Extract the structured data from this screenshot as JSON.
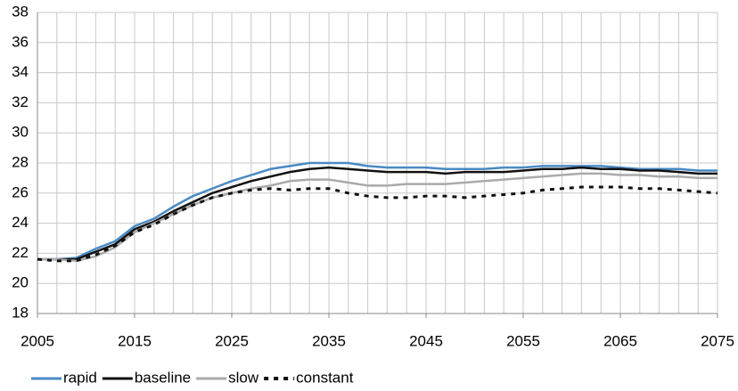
{
  "chart_data": {
    "type": "line",
    "x": [
      2005,
      2007,
      2009,
      2011,
      2013,
      2015,
      2017,
      2019,
      2021,
      2023,
      2025,
      2027,
      2029,
      2031,
      2033,
      2035,
      2037,
      2039,
      2041,
      2043,
      2045,
      2047,
      2049,
      2051,
      2053,
      2055,
      2057,
      2059,
      2061,
      2063,
      2065,
      2067,
      2069,
      2071,
      2073,
      2075
    ],
    "series": [
      {
        "name": "rapid",
        "color": "#4a8ac4",
        "style": "solid",
        "values": [
          21.6,
          21.6,
          21.7,
          22.3,
          22.8,
          23.8,
          24.3,
          25.1,
          25.8,
          26.3,
          26.8,
          27.2,
          27.6,
          27.8,
          28.0,
          28.0,
          28.0,
          27.8,
          27.7,
          27.7,
          27.7,
          27.6,
          27.6,
          27.6,
          27.7,
          27.7,
          27.8,
          27.8,
          27.8,
          27.8,
          27.7,
          27.6,
          27.6,
          27.6,
          27.5,
          27.5
        ]
      },
      {
        "name": "baseline",
        "color": "#111111",
        "style": "solid",
        "values": [
          21.6,
          21.6,
          21.6,
          22.1,
          22.6,
          23.6,
          24.1,
          24.8,
          25.4,
          26.0,
          26.4,
          26.8,
          27.1,
          27.4,
          27.6,
          27.7,
          27.6,
          27.5,
          27.4,
          27.4,
          27.4,
          27.3,
          27.4,
          27.4,
          27.4,
          27.5,
          27.6,
          27.6,
          27.7,
          27.6,
          27.6,
          27.5,
          27.5,
          27.4,
          27.3,
          27.3
        ]
      },
      {
        "name": "slow",
        "color": "#aaaaaa",
        "style": "solid",
        "values": [
          21.6,
          21.6,
          21.5,
          21.8,
          22.4,
          23.4,
          24.0,
          24.6,
          25.2,
          25.7,
          26.0,
          26.3,
          26.5,
          26.8,
          26.9,
          26.9,
          26.7,
          26.5,
          26.5,
          26.6,
          26.6,
          26.6,
          26.7,
          26.8,
          26.9,
          27.0,
          27.1,
          27.2,
          27.3,
          27.3,
          27.2,
          27.2,
          27.1,
          27.1,
          27.0,
          27.0
        ]
      },
      {
        "name": "constant",
        "color": "#111111",
        "style": "dashed",
        "values": [
          21.6,
          21.5,
          21.5,
          21.9,
          22.5,
          23.4,
          23.9,
          24.6,
          25.2,
          25.7,
          26.0,
          26.2,
          26.3,
          26.2,
          26.3,
          26.3,
          26.0,
          25.8,
          25.7,
          25.7,
          25.8,
          25.8,
          25.7,
          25.8,
          25.9,
          26.0,
          26.2,
          26.3,
          26.4,
          26.4,
          26.4,
          26.3,
          26.3,
          26.2,
          26.1,
          26.0
        ]
      }
    ],
    "xlim": [
      2005,
      2075
    ],
    "xticks": [
      2005,
      2015,
      2025,
      2035,
      2045,
      2055,
      2065,
      2075
    ],
    "ylim": [
      18,
      38
    ],
    "yticks": [
      18,
      20,
      22,
      24,
      26,
      28,
      30,
      32,
      34,
      36,
      38
    ],
    "grid": true,
    "legend": "bottom-left"
  }
}
